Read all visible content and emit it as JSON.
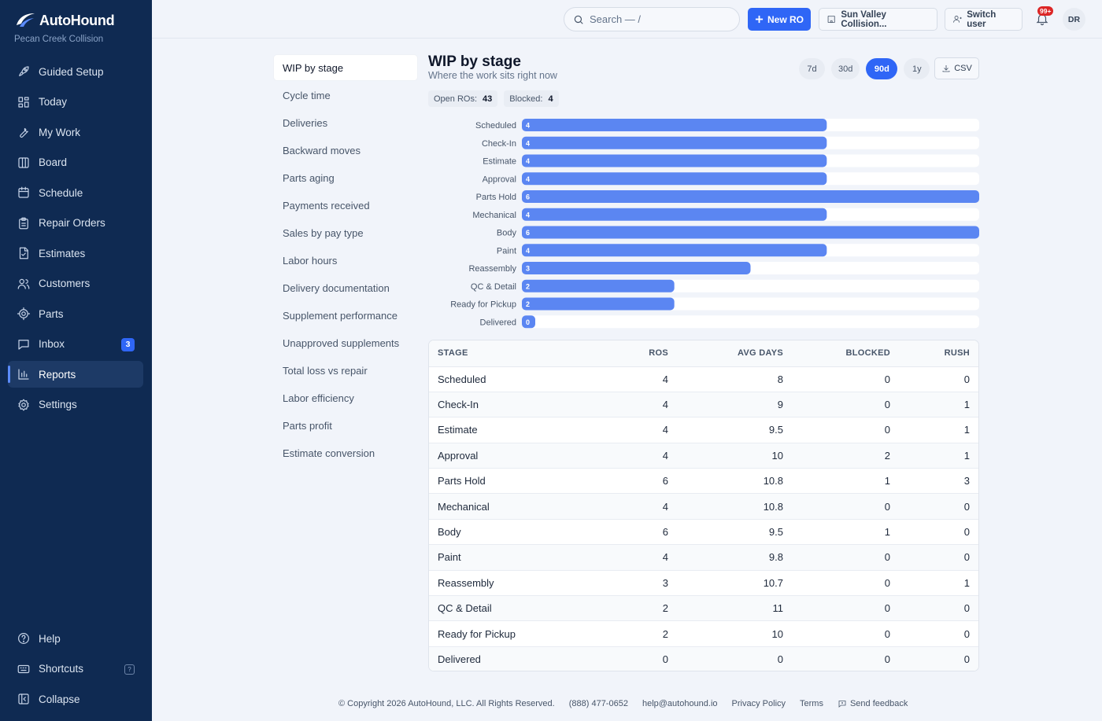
{
  "brand": {
    "name": "AutoHound",
    "shop": "Pecan Creek Collision"
  },
  "sidebar": {
    "items": [
      {
        "label": "Guided Setup",
        "icon": "rocket-icon"
      },
      {
        "label": "Today",
        "icon": "dashboard-icon"
      },
      {
        "label": "My Work",
        "icon": "wrench-icon"
      },
      {
        "label": "Board",
        "icon": "board-columns-icon"
      },
      {
        "label": "Schedule",
        "icon": "calendar-icon"
      },
      {
        "label": "Repair Orders",
        "icon": "clipboard-icon"
      },
      {
        "label": "Estimates",
        "icon": "document-icon"
      },
      {
        "label": "Customers",
        "icon": "users-icon"
      },
      {
        "label": "Parts",
        "icon": "gear-part-icon"
      },
      {
        "label": "Inbox",
        "icon": "message-icon",
        "badge": "3"
      },
      {
        "label": "Reports",
        "icon": "bar-chart-icon",
        "active": true
      },
      {
        "label": "Settings",
        "icon": "settings-icon"
      }
    ],
    "bottom": [
      {
        "label": "Help",
        "icon": "help-icon"
      },
      {
        "label": "Shortcuts",
        "icon": "keyboard-icon",
        "kbd": "?"
      },
      {
        "label": "Collapse",
        "icon": "collapse-icon"
      }
    ]
  },
  "topbar": {
    "search_placeholder": "Search — /",
    "new_ro_label": "New RO",
    "shop_switch_label": "Sun Valley Collision...",
    "switch_user_label": "Switch user",
    "notifications_badge": "99+",
    "avatar_initials": "DR"
  },
  "reports_nav": [
    "WIP by stage",
    "Cycle time",
    "Deliveries",
    "Backward moves",
    "Parts aging",
    "Payments received",
    "Sales by pay type",
    "Labor hours",
    "Delivery documentation",
    "Supplement performance",
    "Unapproved supplements",
    "Total loss vs repair",
    "Labor efficiency",
    "Parts profit",
    "Estimate conversion"
  ],
  "report": {
    "title": "WIP by stage",
    "subtitle": "Where the work sits right now",
    "ranges": [
      "7d",
      "30d",
      "90d",
      "1y"
    ],
    "active_range": "90d",
    "csv_label": "CSV",
    "stats": {
      "open_label": "Open ROs:",
      "open_value": "43",
      "blocked_label": "Blocked:",
      "blocked_value": "4"
    }
  },
  "chart_data": {
    "type": "bar",
    "orientation": "horizontal",
    "categories": [
      "Scheduled",
      "Check-In",
      "Estimate",
      "Approval",
      "Parts Hold",
      "Mechanical",
      "Body",
      "Paint",
      "Reassembly",
      "QC & Detail",
      "Ready for Pickup",
      "Delivered"
    ],
    "values": [
      4,
      4,
      4,
      4,
      6,
      4,
      6,
      4,
      3,
      2,
      2,
      0
    ],
    "xlim": [
      0,
      6
    ],
    "bar_color": "#5b86f2",
    "track_color": "#ffffff"
  },
  "table": {
    "headers": [
      "STAGE",
      "ROS",
      "AVG DAYS",
      "BLOCKED",
      "RUSH"
    ],
    "rows": [
      [
        "Scheduled",
        "4",
        "8",
        "0",
        "0"
      ],
      [
        "Check-In",
        "4",
        "9",
        "0",
        "1"
      ],
      [
        "Estimate",
        "4",
        "9.5",
        "0",
        "1"
      ],
      [
        "Approval",
        "4",
        "10",
        "2",
        "1"
      ],
      [
        "Parts Hold",
        "6",
        "10.8",
        "1",
        "3"
      ],
      [
        "Mechanical",
        "4",
        "10.8",
        "0",
        "0"
      ],
      [
        "Body",
        "6",
        "9.5",
        "1",
        "0"
      ],
      [
        "Paint",
        "4",
        "9.8",
        "0",
        "0"
      ],
      [
        "Reassembly",
        "3",
        "10.7",
        "0",
        "1"
      ],
      [
        "QC & Detail",
        "2",
        "11",
        "0",
        "0"
      ],
      [
        "Ready for Pickup",
        "2",
        "10",
        "0",
        "0"
      ],
      [
        "Delivered",
        "0",
        "0",
        "0",
        "0"
      ]
    ]
  },
  "footer": {
    "copyright": "© Copyright 2026 AutoHound, LLC. All Rights Reserved.",
    "phone": "(888) 477-0652",
    "email": "help@autohound.io",
    "privacy": "Privacy Policy",
    "terms": "Terms",
    "feedback": "Send feedback"
  }
}
